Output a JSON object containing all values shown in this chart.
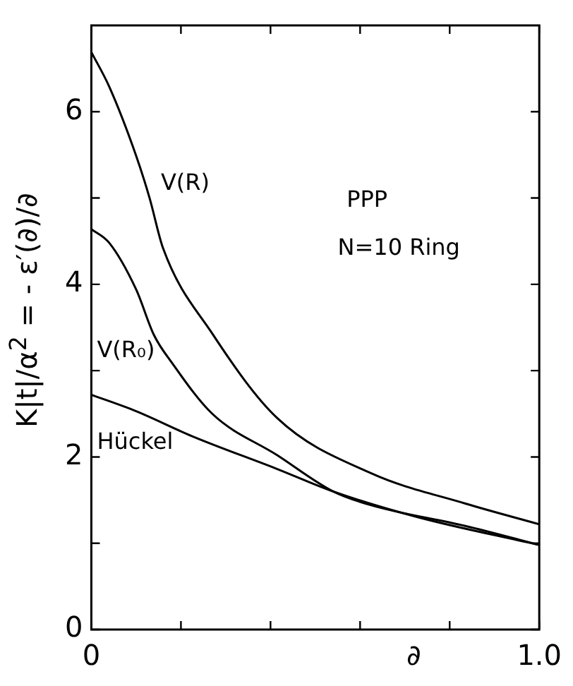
{
  "chart_data": {
    "type": "line",
    "xlabel": "∂",
    "ylabel": "K|t|/α$^{2}$ = - ε′(∂)/∂",
    "annotations": [
      "PPP",
      "N=10 Ring"
    ],
    "xlim": [
      0,
      1.0
    ],
    "xticks": [
      0,
      {
        "value": 0.2,
        "label": null
      },
      {
        "value": 0.4,
        "label": null
      },
      {
        "value": 0.6,
        "label": null
      },
      {
        "value": 0.8,
        "label": null
      },
      {
        "value": 1.0,
        "label": "1.0"
      }
    ],
    "ylim": [
      0,
      7
    ],
    "yticks": [
      0,
      {
        "value": 1,
        "label": null
      },
      2,
      {
        "value": 3,
        "label": null
      },
      4,
      {
        "value": 5,
        "label": null
      },
      6
    ],
    "grid": false,
    "legend": false,
    "marker": "none",
    "line_style": "solid",
    "series": [
      {
        "name": "V(R)",
        "color": "#000000",
        "x": [
          0,
          0.04,
          0.1,
          0.13,
          0.16,
          0.27,
          0.415,
          0.625,
          0.835,
          1.0
        ],
        "values": [
          6.69,
          6.29,
          5.49,
          5.0,
          4.42,
          3.43,
          2.45,
          1.81,
          1.46,
          1.22
        ]
      },
      {
        "name": "V(R₀)",
        "color": "#000000",
        "x": [
          0,
          0.04,
          0.1,
          0.14,
          0.18,
          0.27,
          0.415,
          0.54,
          0.625,
          0.835,
          1.0
        ],
        "values": [
          4.64,
          4.48,
          3.94,
          3.41,
          3.09,
          2.5,
          2.02,
          1.6,
          1.44,
          1.2,
          0.98
        ]
      },
      {
        "name": "Hückel",
        "color": "#000000",
        "x": [
          0,
          0.1,
          0.225,
          0.415,
          0.54,
          0.73,
          1.0
        ],
        "values": [
          2.72,
          2.53,
          2.24,
          1.86,
          1.6,
          1.3,
          0.98
        ]
      }
    ]
  }
}
